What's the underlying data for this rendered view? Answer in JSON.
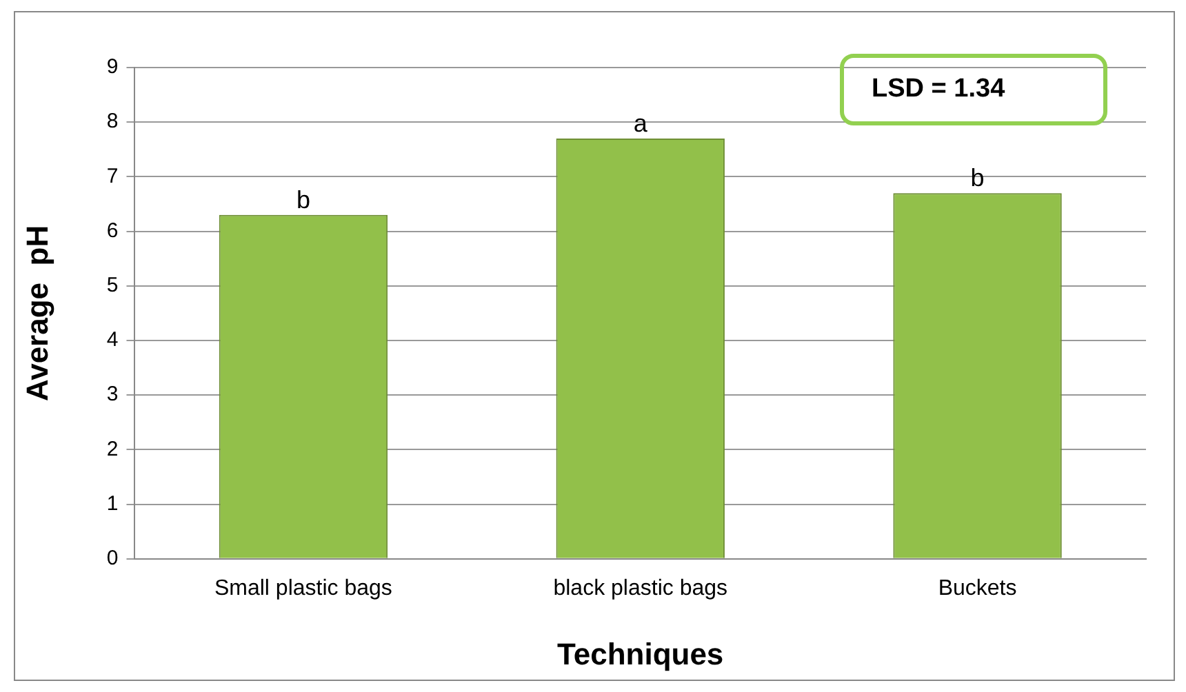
{
  "chart_data": {
    "type": "bar",
    "xlabel": "Techniques",
    "ylabel": "Average  pH",
    "categories": [
      "Small plastic bags",
      "black plastic bags",
      "Buckets"
    ],
    "values": [
      6.3,
      7.7,
      6.7
    ],
    "color": "#92c04a",
    "ylim": [
      0,
      9
    ],
    "yticks": [
      0,
      1,
      2,
      3,
      4,
      5,
      6,
      7,
      8,
      9
    ],
    "grid": "y",
    "annotations": [
      {
        "text": "b",
        "x": "Small plastic bags",
        "y": 6.3
      },
      {
        "text": "a",
        "x": "black plastic bags",
        "y": 7.7
      },
      {
        "text": "b",
        "x": "Buckets",
        "y": 6.7
      },
      "LSD = 1.34"
    ]
  }
}
